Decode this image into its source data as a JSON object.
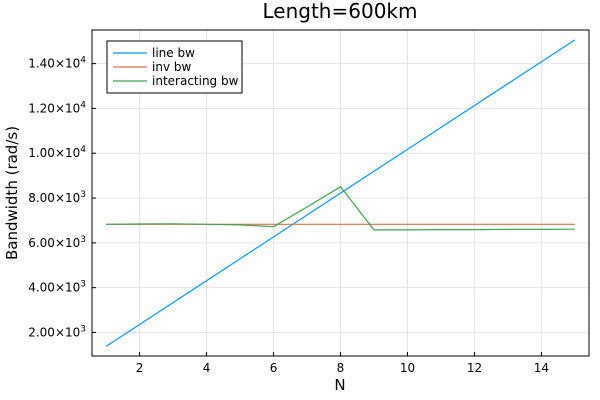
{
  "chart_data": {
    "type": "line",
    "title": "Length=600km",
    "xlabel": "N",
    "ylabel": "Bandwidth (rad/s)",
    "xlim": [
      0.58,
      15.42
    ],
    "ylim": [
      950,
      15500
    ],
    "x_ticks": [
      2,
      4,
      6,
      8,
      10,
      12,
      14
    ],
    "y_ticks": [
      {
        "value": 2000,
        "mantissa": "2.00",
        "base": "×10",
        "exp": "3"
      },
      {
        "value": 4000,
        "mantissa": "4.00",
        "base": "×10",
        "exp": "3"
      },
      {
        "value": 6000,
        "mantissa": "6.00",
        "base": "×10",
        "exp": "3"
      },
      {
        "value": 8000,
        "mantissa": "8.00",
        "base": "×10",
        "exp": "3"
      },
      {
        "value": 10000,
        "mantissa": "1.00",
        "base": "×10",
        "exp": "4"
      },
      {
        "value": 12000,
        "mantissa": "1.20",
        "base": "×10",
        "exp": "4"
      },
      {
        "value": 14000,
        "mantissa": "1.40",
        "base": "×10",
        "exp": "4"
      }
    ],
    "grid": true,
    "legend_position": "top-left",
    "series": [
      {
        "name": "line bw",
        "color": "#009AFA",
        "x": [
          1,
          15
        ],
        "y": [
          1380,
          15060
        ]
      },
      {
        "name": "inv bw",
        "color": "#E36F47",
        "x": [
          1,
          2,
          3,
          4,
          5,
          6,
          7,
          8,
          9,
          10,
          11,
          12,
          13,
          14,
          15
        ],
        "y": [
          6830,
          6830,
          6830,
          6830,
          6830,
          6830,
          6830,
          6830,
          6830,
          6830,
          6830,
          6830,
          6830,
          6830,
          6830
        ]
      },
      {
        "name": "interacting bw",
        "color": "#3EA44E",
        "x": [
          1,
          2,
          3,
          4,
          5,
          6,
          7,
          8,
          9,
          10,
          11,
          12,
          13,
          14,
          15
        ],
        "y": [
          6830,
          6840,
          6850,
          6830,
          6800,
          6720,
          7600,
          8500,
          6580,
          6580,
          6590,
          6590,
          6600,
          6600,
          6610
        ]
      }
    ]
  }
}
